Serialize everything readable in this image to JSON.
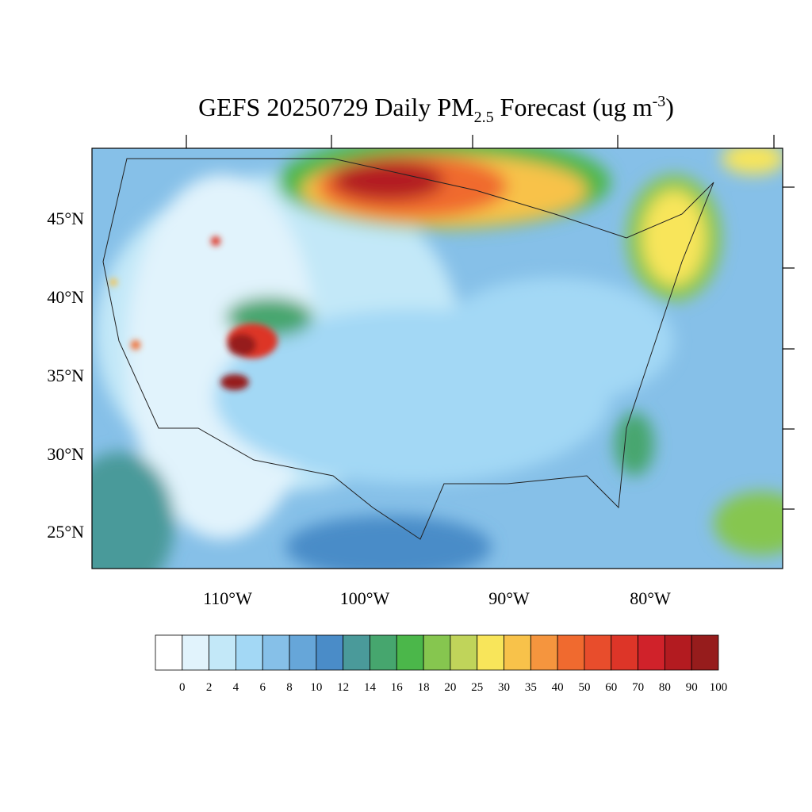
{
  "title": {
    "main": "GEFS 20250729 Daily PM",
    "sub": "2.5",
    "middle": " Forecast (ug m",
    "sup": "-3",
    "end": ")"
  },
  "lat_labels": [
    "45°N",
    "40°N",
    "35°N",
    "30°N",
    "25°N"
  ],
  "lon_labels": [
    "110°W",
    "100°W",
    "90°W",
    "80°W"
  ],
  "colorbar": {
    "colors": [
      "#ffffff",
      "#e1f3fc",
      "#c3e8f8",
      "#a3d8f5",
      "#86c0e8",
      "#66a6d9",
      "#4a8cc8",
      "#4a9a9a",
      "#46a66e",
      "#4bb74a",
      "#86c64f",
      "#c0d45a",
      "#f8e55a",
      "#f8c24a",
      "#f5953e",
      "#f06a2f",
      "#e84d2c",
      "#dd3528",
      "#d0222a",
      "#b31b20",
      "#961c1c"
    ],
    "labels": [
      "0",
      "2",
      "4",
      "6",
      "8",
      "10",
      "12",
      "14",
      "16",
      "18",
      "20",
      "25",
      "30",
      "35",
      "40",
      "50",
      "60",
      "70",
      "80",
      "90",
      "100"
    ]
  }
}
